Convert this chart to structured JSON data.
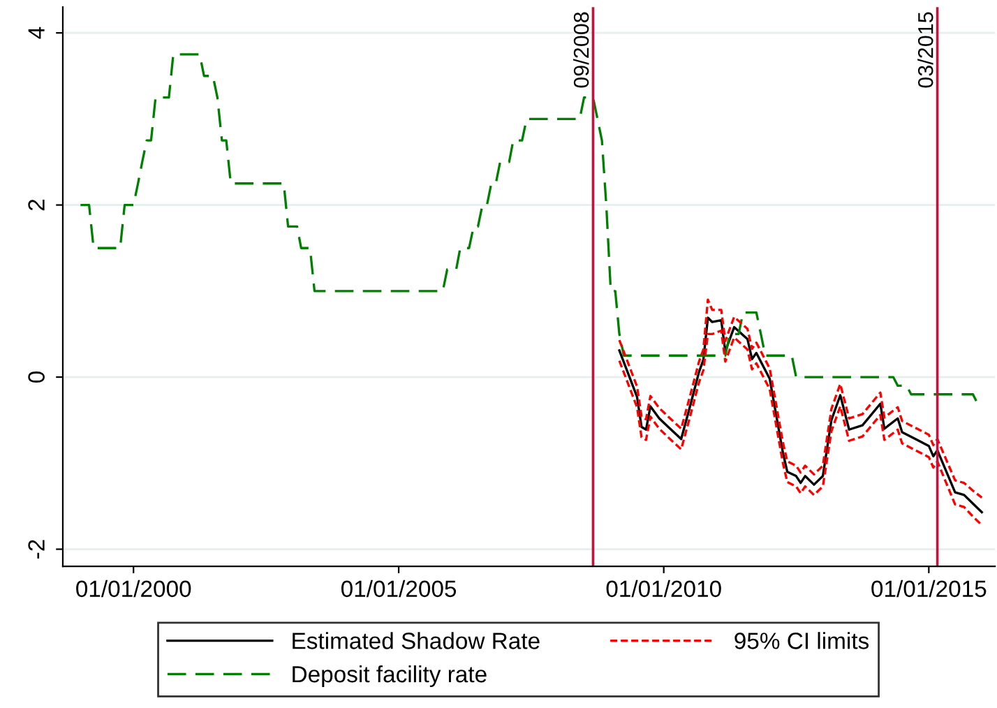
{
  "chart_data": {
    "type": "line",
    "legend": "bottom",
    "grid": "y",
    "marker": "none",
    "xlim": [
      "1998-09",
      "2016-04"
    ],
    "ylim": [
      -2.2,
      4.3
    ],
    "xticks": [
      {
        "value": "2000-01-01",
        "label": "01/01/2000"
      },
      {
        "value": "2005-01-01",
        "label": "01/01/2005"
      },
      {
        "value": "2010-01-01",
        "label": "01/01/2010"
      },
      {
        "value": "2015-01-01",
        "label": "01/01/2015"
      }
    ],
    "yticks": [
      -2,
      0,
      2,
      4
    ],
    "ref_lines": [
      {
        "axis": "x",
        "value": "2008-09",
        "label": "09/2008",
        "color": "#c8103c"
      },
      {
        "axis": "x",
        "value": "2015-03",
        "label": "03/2015",
        "color": "#c8103c"
      }
    ],
    "series": [
      {
        "name": "Estimated Shadow Rate",
        "color": "#000000",
        "line_style": "solid",
        "x": [
          "2009-03",
          "2009-05",
          "2009-07",
          "2009-08",
          "2009-09",
          "2009-10",
          "2009-12",
          "2010-02",
          "2010-05",
          "2010-07",
          "2010-09",
          "2010-10",
          "2010-11",
          "2010-12",
          "2011-02",
          "2011-03",
          "2011-05",
          "2011-08",
          "2011-09",
          "2011-10",
          "2012-01",
          "2012-04",
          "2012-05",
          "2012-07",
          "2012-08",
          "2012-09",
          "2012-11",
          "2013-01",
          "2013-03",
          "2013-05",
          "2013-07",
          "2013-10",
          "2014-02",
          "2014-03",
          "2014-06",
          "2014-07",
          "2014-10",
          "2015-01",
          "2015-02",
          "2015-03",
          "2015-07",
          "2015-09",
          "2015-11",
          "2016-01"
        ],
        "values": [
          0.31,
          0.04,
          -0.23,
          -0.58,
          -0.61,
          -0.34,
          -0.48,
          -0.58,
          -0.72,
          -0.34,
          0.06,
          0.2,
          0.69,
          0.64,
          0.66,
          0.3,
          0.58,
          0.44,
          0.21,
          0.28,
          -0.02,
          -0.88,
          -1.1,
          -1.15,
          -1.23,
          -1.15,
          -1.25,
          -1.15,
          -0.5,
          -0.21,
          -0.61,
          -0.56,
          -0.31,
          -0.6,
          -0.48,
          -0.64,
          -0.72,
          -0.8,
          -0.92,
          -0.85,
          -1.34,
          -1.37,
          -1.47,
          -1.57
        ]
      },
      {
        "name": "Deposit facility rate",
        "color": "#008000",
        "line_style": "dashed",
        "x": [
          "1999-01",
          "1999-03",
          "1999-04",
          "1999-10",
          "1999-11",
          "2000-01",
          "2000-02",
          "2000-03",
          "2000-04",
          "2000-05",
          "2000-06",
          "2000-09",
          "2000-10",
          "2001-04",
          "2001-05",
          "2001-07",
          "2001-08",
          "2001-09",
          "2001-10",
          "2001-11",
          "2002-11",
          "2002-12",
          "2003-02",
          "2003-03",
          "2003-05",
          "2003-06",
          "2005-11",
          "2005-12",
          "2006-02",
          "2006-03",
          "2006-05",
          "2006-06",
          "2006-07",
          "2006-08",
          "2006-09",
          "2006-10",
          "2006-11",
          "2006-12",
          "2007-02",
          "2007-03",
          "2007-05",
          "2007-06",
          "2008-06",
          "2008-07",
          "2008-09",
          "2008-11",
          "2008-12",
          "2009-01",
          "2009-02",
          "2009-03",
          "2009-04",
          "2011-03",
          "2011-04",
          "2011-06",
          "2011-07",
          "2011-10",
          "2011-11",
          "2011-12",
          "2012-06",
          "2012-07",
          "2014-05",
          "2014-06",
          "2014-08",
          "2014-09",
          "2015-11",
          "2015-12"
        ],
        "values": [
          2.0,
          2.0,
          1.5,
          1.5,
          2.0,
          2.0,
          2.25,
          2.5,
          2.75,
          2.75,
          3.25,
          3.25,
          3.75,
          3.75,
          3.5,
          3.5,
          3.25,
          2.75,
          2.75,
          2.25,
          2.25,
          1.75,
          1.75,
          1.5,
          1.5,
          1.0,
          1.0,
          1.25,
          1.25,
          1.5,
          1.5,
          1.75,
          1.75,
          2.0,
          2.0,
          2.25,
          2.25,
          2.5,
          2.5,
          2.75,
          2.75,
          3.0,
          3.0,
          3.25,
          3.25,
          2.75,
          2.0,
          1.0,
          1.0,
          0.5,
          0.25,
          0.25,
          0.5,
          0.5,
          0.75,
          0.75,
          0.5,
          0.25,
          0.25,
          0.0,
          0.0,
          -0.1,
          -0.1,
          -0.2,
          -0.2,
          -0.3
        ]
      },
      {
        "name": "95% CI limits",
        "color": "#ff0000",
        "line_style": "dotted",
        "x": [
          "2009-03",
          "2009-05",
          "2009-07",
          "2009-08",
          "2009-09",
          "2009-10",
          "2009-12",
          "2010-02",
          "2010-05",
          "2010-07",
          "2010-09",
          "2010-10",
          "2010-11",
          "2010-12",
          "2011-02",
          "2011-03",
          "2011-05",
          "2011-08",
          "2011-09",
          "2011-10",
          "2012-01",
          "2012-04",
          "2012-05",
          "2012-07",
          "2012-08",
          "2012-09",
          "2012-11",
          "2013-01",
          "2013-03",
          "2013-05",
          "2013-07",
          "2013-10",
          "2014-02",
          "2014-03",
          "2014-06",
          "2014-07",
          "2014-10",
          "2015-01",
          "2015-02",
          "2015-03",
          "2015-07",
          "2015-09",
          "2015-11",
          "2016-01"
        ],
        "values": [
          0.43,
          0.16,
          -0.11,
          -0.46,
          -0.49,
          -0.22,
          -0.36,
          -0.46,
          -0.6,
          -0.22,
          0.18,
          0.32,
          0.9,
          0.78,
          0.78,
          0.42,
          0.7,
          0.56,
          0.33,
          0.4,
          0.1,
          -0.76,
          -0.98,
          -1.03,
          -1.11,
          -1.03,
          -1.13,
          -1.03,
          -0.37,
          -0.08,
          -0.48,
          -0.43,
          -0.18,
          -0.47,
          -0.35,
          -0.51,
          -0.59,
          -0.67,
          -0.79,
          -0.72,
          -1.2,
          -1.23,
          -1.32,
          -1.4
        ]
      },
      {
        "color": "#ff0000",
        "line_style": "dotted",
        "x": [
          "2009-03",
          "2009-05",
          "2009-07",
          "2009-08",
          "2009-09",
          "2009-10",
          "2009-12",
          "2010-02",
          "2010-05",
          "2010-07",
          "2010-09",
          "2010-10",
          "2010-11",
          "2010-12",
          "2011-02",
          "2011-03",
          "2011-05",
          "2011-08",
          "2011-09",
          "2011-10",
          "2012-01",
          "2012-04",
          "2012-05",
          "2012-07",
          "2012-08",
          "2012-09",
          "2012-11",
          "2013-01",
          "2013-03",
          "2013-05",
          "2013-07",
          "2013-10",
          "2014-02",
          "2014-03",
          "2014-06",
          "2014-07",
          "2014-10",
          "2015-01",
          "2015-02",
          "2015-03",
          "2015-07",
          "2015-09",
          "2015-11",
          "2016-01"
        ],
        "values": [
          0.19,
          -0.08,
          -0.35,
          -0.7,
          -0.73,
          -0.46,
          -0.6,
          -0.7,
          -0.84,
          -0.46,
          -0.06,
          0.08,
          0.5,
          0.5,
          0.54,
          0.18,
          0.46,
          0.32,
          0.09,
          0.16,
          -0.14,
          -1.0,
          -1.22,
          -1.27,
          -1.35,
          -1.27,
          -1.37,
          -1.27,
          -0.63,
          -0.34,
          -0.74,
          -0.69,
          -0.44,
          -0.73,
          -0.61,
          -0.77,
          -0.85,
          -0.93,
          -1.05,
          -0.98,
          -1.48,
          -1.51,
          -1.62,
          -1.72
        ]
      }
    ]
  }
}
